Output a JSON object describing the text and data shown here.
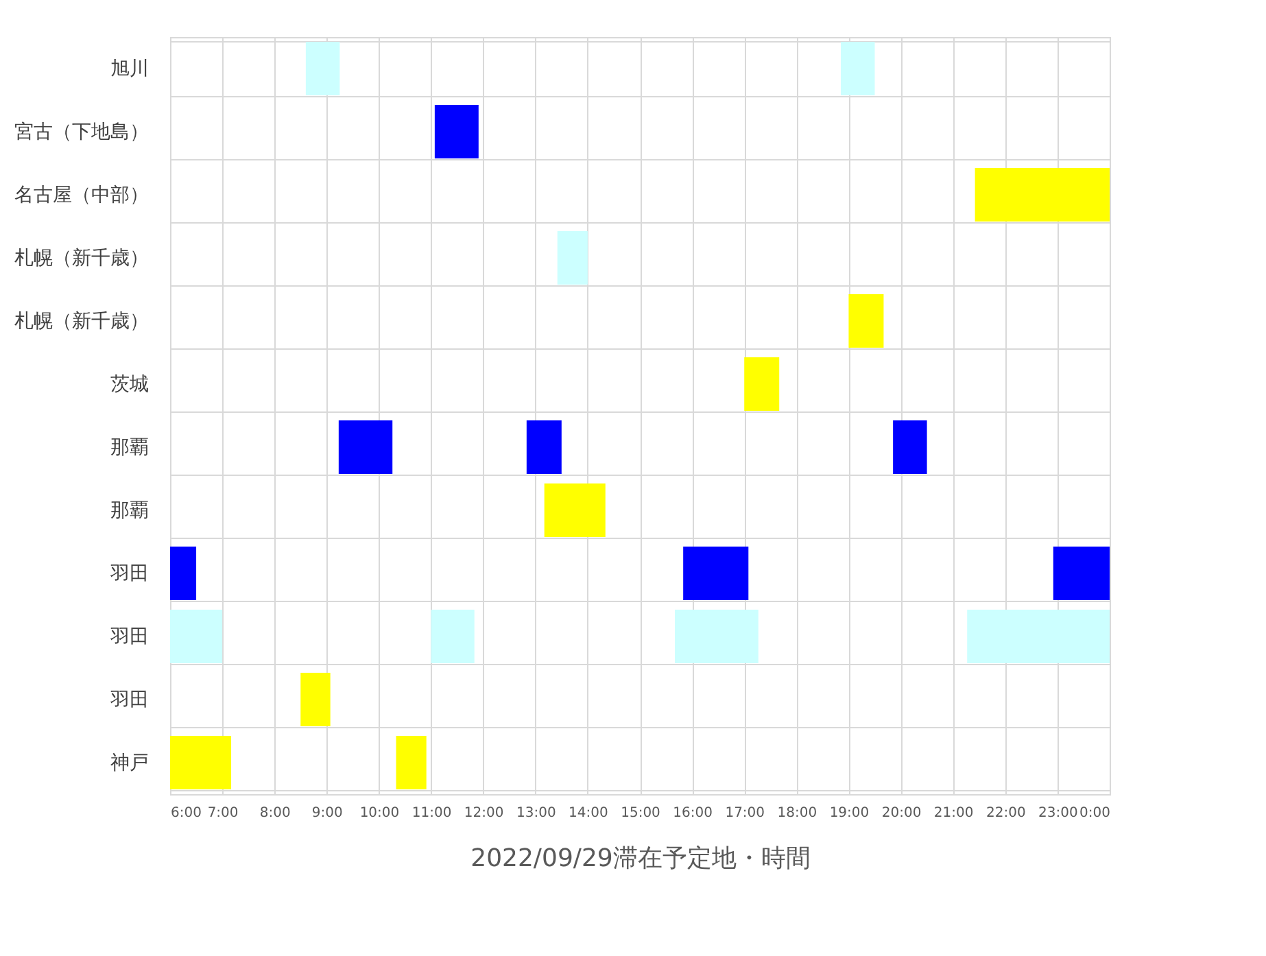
{
  "chart_data": {
    "type": "bar",
    "orientation": "horizontal",
    "xlabel": "2022/09/29滞在予定地・時間",
    "categories": [
      "旭川",
      "宮古（下地島）",
      "名古屋（中部）",
      "札幌（新千歳）",
      "札幌（新千歳）",
      "茨城",
      "那覇",
      "那覇",
      "羽田",
      "羽田",
      "羽田",
      "神戸"
    ],
    "xlim": [
      6,
      24
    ],
    "xticks": [
      {
        "value": 6,
        "label": "6:00"
      },
      {
        "value": 7,
        "label": "7:00"
      },
      {
        "value": 8,
        "label": "8:00"
      },
      {
        "value": 9,
        "label": "9:00"
      },
      {
        "value": 10,
        "label": "10:00"
      },
      {
        "value": 11,
        "label": "11:00"
      },
      {
        "value": 12,
        "label": "12:00"
      },
      {
        "value": 13,
        "label": "13:00"
      },
      {
        "value": 14,
        "label": "14:00"
      },
      {
        "value": 15,
        "label": "15:00"
      },
      {
        "value": 16,
        "label": "16:00"
      },
      {
        "value": 17,
        "label": "17:00"
      },
      {
        "value": 18,
        "label": "18:00"
      },
      {
        "value": 19,
        "label": "19:00"
      },
      {
        "value": 20,
        "label": "20:00"
      },
      {
        "value": 21,
        "label": "21:00"
      },
      {
        "value": 22,
        "label": "22:00"
      },
      {
        "value": 23,
        "label": "23:00"
      },
      {
        "value": 24,
        "label": "0:00"
      }
    ],
    "grid": true,
    "series": [
      {
        "values": [
          0.65,
          0.84,
          2.58,
          0.58,
          0.67,
          0.67,
          1.03,
          1.17,
          0.5,
          1,
          0.57,
          1.17
        ],
        "base": [
          8.6,
          11.07,
          21.42,
          13.42,
          19,
          17,
          9.23,
          13.17,
          6,
          6,
          8.5,
          6
        ],
        "colors": [
          "#ccffff",
          "#0000ff",
          "#ffff00",
          "#ccffff",
          "#ffff00",
          "#ffff00",
          "#0000ff",
          "#ffff00",
          "#0000ff",
          "#ccffff",
          "#ffff00",
          "#ffff00"
        ]
      },
      {
        "values": [
          0.65,
          null,
          null,
          null,
          null,
          null,
          0.67,
          null,
          1.25,
          0.83,
          null,
          0.58
        ],
        "base": [
          18.85,
          null,
          null,
          null,
          null,
          null,
          12.83,
          null,
          15.83,
          11,
          null,
          10.33
        ],
        "colors": [
          "#ccffff",
          null,
          null,
          null,
          null,
          null,
          "#0000ff",
          null,
          "#0000ff",
          "#ccffff",
          null,
          "#ffff00"
        ]
      },
      {
        "values": [
          null,
          null,
          null,
          null,
          null,
          null,
          0.65,
          null,
          1.08,
          1.6,
          null,
          null
        ],
        "base": [
          null,
          null,
          null,
          null,
          null,
          null,
          19.85,
          null,
          22.92,
          15.67,
          null,
          null
        ],
        "colors": [
          null,
          null,
          null,
          null,
          null,
          null,
          "#0000ff",
          null,
          "#0000ff",
          "#ccffff",
          null,
          null
        ]
      },
      {
        "values": [
          null,
          null,
          null,
          null,
          null,
          null,
          null,
          null,
          null,
          2.73,
          null,
          null
        ],
        "base": [
          null,
          null,
          null,
          null,
          null,
          null,
          null,
          null,
          null,
          21.27,
          null,
          null
        ],
        "colors": [
          null,
          null,
          null,
          null,
          null,
          null,
          null,
          null,
          null,
          "#ccffff",
          null,
          null
        ]
      }
    ]
  }
}
